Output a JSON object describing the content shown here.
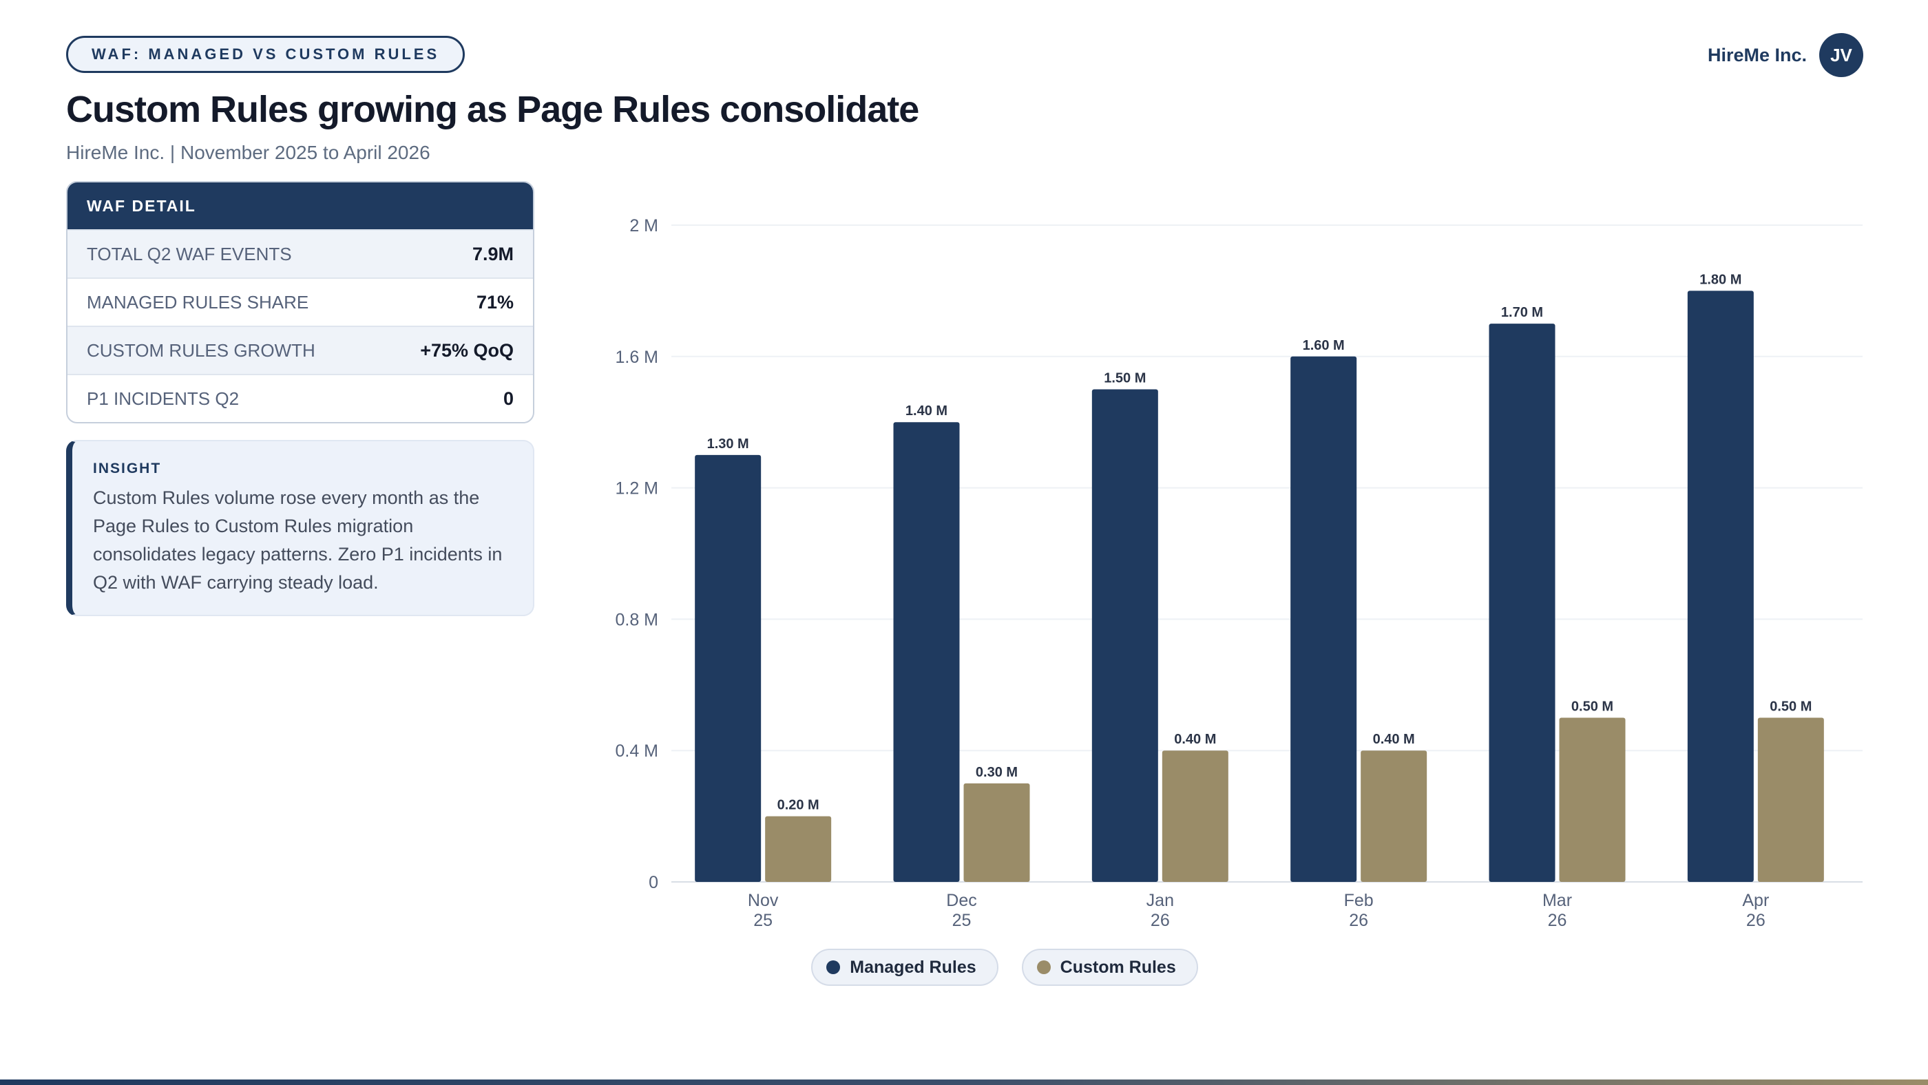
{
  "header": {
    "tag": "WAF: MANAGED VS CUSTOM RULES",
    "title": "Custom Rules growing as Page Rules consolidate",
    "subtitle": "HireMe Inc. | November 2025 to April 2026",
    "brand": "HireMe Inc.",
    "avatar_initials": "JV"
  },
  "detail": {
    "heading": "WAF DETAIL",
    "rows": [
      {
        "label": "TOTAL Q2 WAF EVENTS",
        "value": "7.9M"
      },
      {
        "label": "MANAGED RULES SHARE",
        "value": "71%"
      },
      {
        "label": "CUSTOM RULES GROWTH",
        "value": "+75% QoQ"
      },
      {
        "label": "P1 INCIDENTS Q2",
        "value": "0"
      }
    ]
  },
  "insight": {
    "heading": "INSIGHT",
    "text": "Custom Rules volume rose every month as the Page Rules to Custom Rules migration consolidates legacy patterns. Zero P1 incidents in Q2 with WAF carrying steady load."
  },
  "colors": {
    "managed": "#1f3a5f",
    "custom": "#9a8c68"
  },
  "chart_data": {
    "type": "bar",
    "categories": [
      [
        "Nov",
        "25"
      ],
      [
        "Dec",
        "25"
      ],
      [
        "Jan",
        "26"
      ],
      [
        "Feb",
        "26"
      ],
      [
        "Mar",
        "26"
      ],
      [
        "Apr",
        "26"
      ]
    ],
    "series": [
      {
        "name": "Managed Rules",
        "values": [
          1.3,
          1.4,
          1.5,
          1.6,
          1.7,
          1.8
        ],
        "labels": [
          "1.30 M",
          "1.40 M",
          "1.50 M",
          "1.60 M",
          "1.70 M",
          "1.80 M"
        ]
      },
      {
        "name": "Custom Rules",
        "values": [
          0.2,
          0.3,
          0.4,
          0.4,
          0.5,
          0.5
        ],
        "labels": [
          "0.20 M",
          "0.30 M",
          "0.40 M",
          "0.40 M",
          "0.50 M",
          "0.50 M"
        ]
      }
    ],
    "ylim": [
      0,
      2
    ],
    "yticks": [
      0,
      0.4,
      0.8,
      1.2,
      1.6,
      2
    ],
    "ytick_labels": [
      "0",
      "0.4 M",
      "0.8 M",
      "1.2 M",
      "1.6 M",
      "2 M"
    ],
    "grid": true,
    "legend": "bottom-center"
  }
}
